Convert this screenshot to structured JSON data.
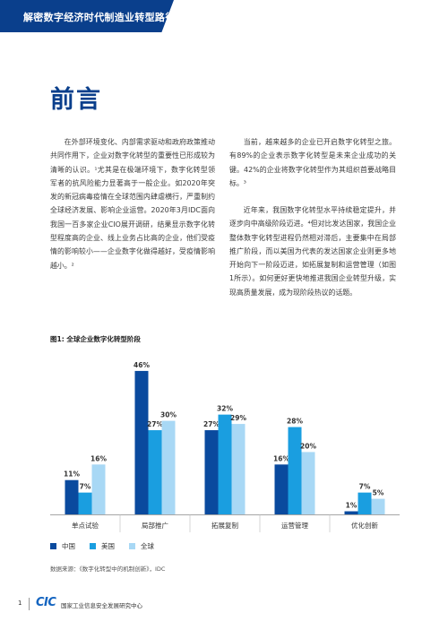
{
  "header": {
    "title": "解密数字经济时代制造业转型路径"
  },
  "section": {
    "title": "前言"
  },
  "body": {
    "col1_p1": "在外部环境变化、内部需求驱动和政府政策推动共同作用下，企业对数字化转型的重要性已形成较为清晰的认识。¹尤其是在极端环境下，数字化转型领军者的抗风险能力显著高于一般企业。如2020年突发的新冠病毒疫情在全球范围内肆虐横行，严重制约全球经济发展、影响企业运营。2020年3月IDC面向我国一百多家企业CIO展开调研，结果显示数字化转型程度高的企业、线上业务占比高的企业，他们受疫情的影响较小——企业数字化做得越好，受疫情影响越小。²",
    "col2_p1": "当前，越来越多的企业已开启数字化转型之旅。有89%的企业表示数字化转型是未来企业成功的关键。42%的企业将数字化转型作为其组织首要战略目标。³",
    "col2_p2": "近年来，我国数字化转型水平持续稳定提升，并逐步向中高级阶段迈进。⁴但对比发达国家，我国企业整体数字化转型进程仍然相对滞后，主要集中在局部推广阶段，而以美国为代表的发达国家企业则更多地开始向下一阶段迈进，如拓展复制和运营管理（如图1所示）。如何更好更快地推进我国企业转型升级，实现高质量发展，成为现阶段热议的话题。"
  },
  "figure": {
    "caption": "图1: 全球企业数字化转型阶段",
    "source": "数据来源：《数字化转型中的机制创新》，IDC"
  },
  "chart_data": {
    "type": "bar",
    "title": "图1: 全球企业数字化转型阶段",
    "categories": [
      "单点试验",
      "局部推广",
      "拓展复制",
      "运营管理",
      "优化创新"
    ],
    "series": [
      {
        "name": "中国",
        "values": [
          11,
          46,
          27,
          16,
          1
        ],
        "labels": [
          "11%",
          "46%",
          "27%",
          "16%",
          "1%"
        ],
        "color": "#0a4a9e"
      },
      {
        "name": "美国",
        "values": [
          7,
          27,
          32,
          28,
          7
        ],
        "labels": [
          "7%",
          "27%",
          "32%",
          "28%",
          "7%"
        ],
        "color": "#1a9ee0"
      },
      {
        "name": "全球",
        "values": [
          16,
          30,
          29,
          20,
          5
        ],
        "labels": [
          "16%",
          "30%",
          "29%",
          "20%",
          "5%"
        ],
        "color": "#a8d8f5"
      }
    ],
    "ylim": [
      0,
      50
    ],
    "grid": false,
    "legend": "bottom-left"
  },
  "footer": {
    "page": "1",
    "logo": "CIC",
    "org": "国家工业信息安全发展研究中心"
  }
}
